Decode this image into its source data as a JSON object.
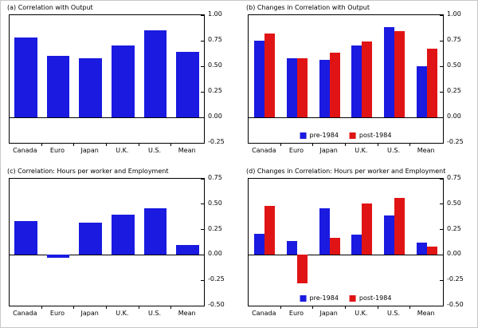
{
  "colors": {
    "blue": "#1a1ae0",
    "red": "#e01414"
  },
  "chart_data": [
    {
      "type": "bar",
      "title": "(a) Correlation with Output",
      "categories": [
        "Canada",
        "Euro",
        "Japan",
        "U.K.",
        "U.S.",
        "Mean"
      ],
      "series": [
        {
          "name": "",
          "color_key": "blue",
          "values": [
            0.78,
            0.6,
            0.58,
            0.7,
            0.85,
            0.64
          ]
        }
      ],
      "ylim": [
        -0.25,
        1.0
      ],
      "ytick_labels": [
        "1.00",
        "0.75",
        "0.50",
        "0.25",
        "0.00",
        "-0.25"
      ],
      "grid": false,
      "legend": false
    },
    {
      "type": "bar",
      "title": "(b) Changes in Correlation with Output",
      "categories": [
        "Canada",
        "Euro",
        "Japan",
        "U.K.",
        "U.S.",
        "Mean"
      ],
      "series": [
        {
          "name": "pre-1984",
          "color_key": "blue",
          "values": [
            0.75,
            0.58,
            0.56,
            0.7,
            0.88,
            0.5
          ]
        },
        {
          "name": "post-1984",
          "color_key": "red",
          "values": [
            0.82,
            0.58,
            0.63,
            0.74,
            0.84,
            0.67
          ]
        }
      ],
      "ylim": [
        -0.25,
        1.0
      ],
      "ytick_labels": [
        "1.00",
        "0.75",
        "0.50",
        "0.25",
        "0.00",
        "-0.25"
      ],
      "grid": false,
      "legend": true,
      "legend_position": "bottom-center-inside"
    },
    {
      "type": "bar",
      "title": "(c) Correlation: Hours per worker and Employment",
      "categories": [
        "Canada",
        "Euro",
        "Japan",
        "U.K.",
        "U.S.",
        "Mean"
      ],
      "series": [
        {
          "name": "",
          "color_key": "blue",
          "values": [
            0.33,
            -0.03,
            0.32,
            0.4,
            0.46,
            0.1
          ]
        }
      ],
      "ylim": [
        -0.5,
        0.75
      ],
      "ytick_labels": [
        "0.75",
        "0.50",
        "0.25",
        "0.00",
        "-0.25",
        "-0.50"
      ],
      "grid": false,
      "legend": false
    },
    {
      "type": "bar",
      "title": "(d) Changes in Correlation: Hours per worker and Employment",
      "categories": [
        "Canada",
        "Euro",
        "Japan",
        "U.K.",
        "U.S.",
        "Mean"
      ],
      "series": [
        {
          "name": "pre-1984",
          "color_key": "blue",
          "values": [
            0.21,
            0.14,
            0.46,
            0.2,
            0.39,
            0.12
          ]
        },
        {
          "name": "post-1984",
          "color_key": "red",
          "values": [
            0.48,
            -0.28,
            0.17,
            0.51,
            0.56,
            0.08
          ]
        }
      ],
      "ylim": [
        -0.5,
        0.75
      ],
      "ytick_labels": [
        "0.75",
        "0.50",
        "0.25",
        "0.00",
        "-0.25",
        "-0.50"
      ],
      "grid": false,
      "legend": true,
      "legend_position": "bottom-center-inside"
    }
  ]
}
